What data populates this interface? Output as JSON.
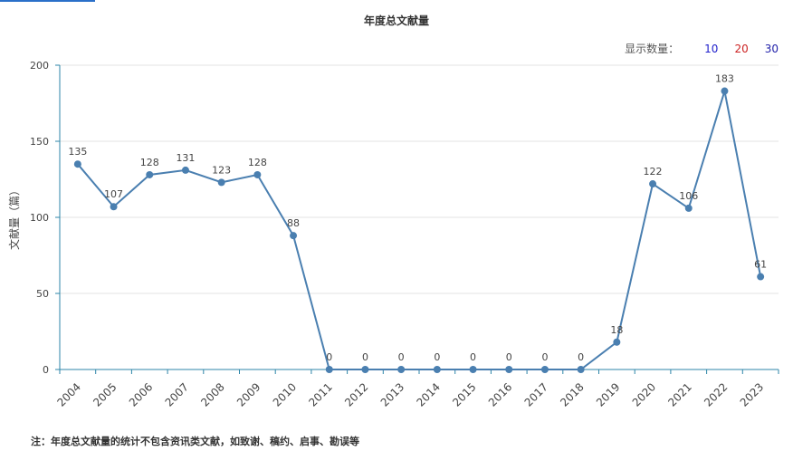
{
  "chart_title": "年度总文献量",
  "count_selector": {
    "label": "显示数量：",
    "options": [
      {
        "label": "10",
        "color": "#2222cc"
      },
      {
        "label": "20",
        "color": "#cc2222"
      },
      {
        "label": "30",
        "color": "#2222aa"
      }
    ]
  },
  "footnote": "注：年度总文献量的统计不包含资讯类文献，如致谢、稿约、启事、勘误等",
  "colors": {
    "line": "#4a7fb0",
    "axis": "#2e86a8",
    "grid": "#e3e3e3"
  },
  "chart_data": {
    "type": "line",
    "title": "年度总文献量",
    "xlabel": "",
    "ylabel": "文献量（篇）",
    "ylim": [
      0,
      200
    ],
    "yticks": [
      0,
      50,
      100,
      150,
      200
    ],
    "grid": true,
    "categories": [
      "2004",
      "2005",
      "2006",
      "2007",
      "2008",
      "2009",
      "2010",
      "2011",
      "2012",
      "2013",
      "2014",
      "2015",
      "2016",
      "2017",
      "2018",
      "2019",
      "2020",
      "2021",
      "2022",
      "2023"
    ],
    "series": [
      {
        "values": [
          135,
          107,
          128,
          131,
          123,
          128,
          88,
          0,
          0,
          0,
          0,
          0,
          0,
          0,
          0,
          18,
          122,
          106,
          183,
          61
        ]
      }
    ]
  }
}
